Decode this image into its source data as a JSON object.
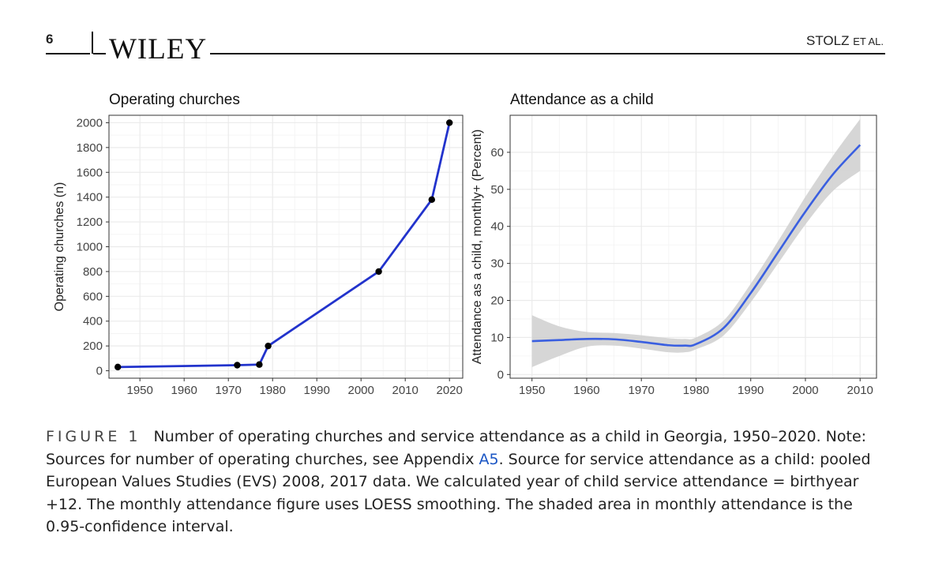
{
  "header": {
    "page_number": "6",
    "journal_logo": "WILEY",
    "authors": "STOLZ",
    "authors_suffix": "ET AL."
  },
  "colors": {
    "line": "#2233cc",
    "smooth": "#3a5fe0",
    "ribbon": "#cfcfcf",
    "grid": "#ebebeb",
    "point": "#000000"
  },
  "chart_data": [
    {
      "type": "line",
      "title": "Operating churches",
      "xlabel": "",
      "ylabel": "Operating churches (n)",
      "xlim": [
        1943,
        2023
      ],
      "ylim": [
        -60,
        2060
      ],
      "xticks": [
        1950,
        1960,
        1970,
        1980,
        1990,
        2000,
        2010,
        2020
      ],
      "yticks": [
        0,
        200,
        400,
        600,
        800,
        1000,
        1200,
        1400,
        1600,
        1800,
        2000
      ],
      "points": true,
      "series": [
        {
          "name": "Operating churches",
          "x": [
            1945,
            1972,
            1977,
            1979,
            2004,
            2016,
            2020
          ],
          "y": [
            30,
            45,
            50,
            200,
            800,
            1380,
            2000
          ]
        }
      ]
    },
    {
      "type": "line",
      "title": "Attendance as a child",
      "xlabel": "",
      "ylabel": "Attendance as a child, monthly+ (Percent)",
      "xlim": [
        1946,
        2013
      ],
      "ylim": [
        -1,
        70
      ],
      "xticks": [
        1950,
        1960,
        1970,
        1980,
        1990,
        2000,
        2010
      ],
      "yticks": [
        0,
        10,
        20,
        30,
        40,
        50,
        60
      ],
      "smoothing": "LOESS",
      "series": [
        {
          "name": "Monthly attendance (LOESS)",
          "x": [
            1950,
            1955,
            1960,
            1965,
            1970,
            1975,
            1978,
            1980,
            1985,
            1990,
            1995,
            2000,
            2005,
            2010
          ],
          "y": [
            9,
            9.3,
            9.6,
            9.5,
            8.8,
            7.9,
            7.8,
            8.2,
            12.5,
            22,
            33,
            44,
            54,
            62
          ],
          "lower": [
            2,
            5,
            7.5,
            7.8,
            7,
            6,
            6,
            6.8,
            10.5,
            19.5,
            30,
            40.5,
            49.5,
            55
          ],
          "upper": [
            16,
            13,
            11.5,
            11.2,
            10.6,
            9.8,
            9.6,
            10,
            14.5,
            24.5,
            36,
            48,
            59,
            69
          ]
        }
      ]
    }
  ],
  "caption": {
    "label": "FIGURE 1",
    "text_before_link": "Number of operating churches and service attendance as a child in Georgia, 1950–2020. Note: Sources for number of operating churches, see Appendix ",
    "link": "A5",
    "text_after_link": ". Source for service attendance as a child: pooled European Values Studies (EVS) 2008, 2017 data. We calculated year of child service attendance = birthyear +12. The monthly attendance figure uses LOESS smoothing. The shaded area in monthly attendance is the 0.95-confidence interval."
  }
}
